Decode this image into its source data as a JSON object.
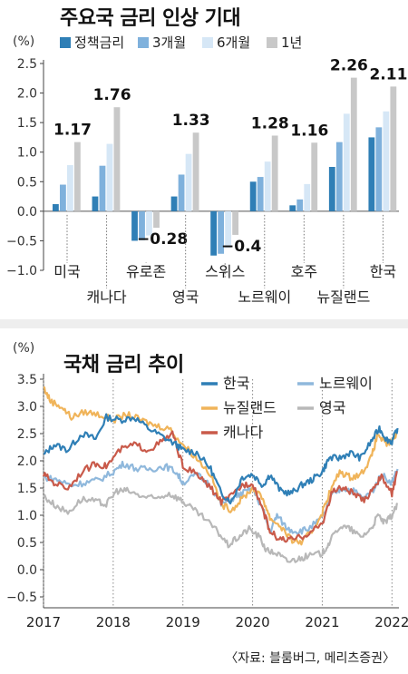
{
  "chart_data": [
    {
      "type": "bar",
      "title": "주요국 금리 인상 기대",
      "ylabel": "(%)",
      "ylim": [
        -1.0,
        2.5
      ],
      "yticks": [
        "2.5",
        "2.0",
        "1.5",
        "1.0",
        "0.5",
        "0.0",
        "-0.5",
        "-1.0"
      ],
      "legend_position": "top",
      "grid": false,
      "categories": [
        "미국",
        "캐나다",
        "유로존",
        "영국",
        "스위스",
        "노르웨이",
        "호주",
        "뉴질랜드",
        "한국"
      ],
      "series": [
        {
          "name": "정책금리",
          "color": "#2f7fb6",
          "values": [
            0.12,
            0.25,
            -0.5,
            0.25,
            -0.75,
            0.5,
            0.1,
            0.75,
            1.25
          ]
        },
        {
          "name": "3개월",
          "color": "#7fb1dc",
          "values": [
            0.45,
            0.77,
            -0.49,
            0.62,
            -0.72,
            0.58,
            0.2,
            1.17,
            1.42
          ]
        },
        {
          "name": "6개월",
          "color": "#d6e7f6",
          "values": [
            0.78,
            1.14,
            -0.41,
            0.97,
            -0.62,
            0.84,
            0.46,
            1.65,
            1.69
          ]
        },
        {
          "name": "1년",
          "color": "#c8c8c8",
          "values": [
            1.17,
            1.76,
            -0.28,
            1.33,
            -0.4,
            1.28,
            1.16,
            2.26,
            2.11
          ]
        }
      ],
      "value_labels": [
        "1.17",
        "1.76",
        "−0.28",
        "1.33",
        "−0.4",
        "1.28",
        "1.16",
        "2.26",
        "2.11"
      ]
    },
    {
      "type": "line",
      "title": "국채 금리 추이",
      "ylabel": "(%)",
      "ylim": [
        -0.5,
        3.5
      ],
      "yticks": [
        "3.5",
        "3.0",
        "2.5",
        "2.0",
        "1.5",
        "1.0",
        "0.5",
        "0.0",
        "-0.5"
      ],
      "xlim": [
        2017.0,
        2022.1
      ],
      "xticks": [
        "2017",
        "2018",
        "2019",
        "2020",
        "2021",
        "2022"
      ],
      "grid": false,
      "series": [
        {
          "name": "한국",
          "color": "#2f7fb6",
          "points": [
            [
              2017.0,
              2.1
            ],
            [
              2017.15,
              2.3
            ],
            [
              2017.35,
              2.2
            ],
            [
              2017.55,
              2.5
            ],
            [
              2017.75,
              2.4
            ],
            [
              2017.9,
              2.8
            ],
            [
              2018.1,
              2.75
            ],
            [
              2018.3,
              2.8
            ],
            [
              2018.5,
              2.6
            ],
            [
              2018.7,
              2.45
            ],
            [
              2018.9,
              2.3
            ],
            [
              2019.0,
              2.2
            ],
            [
              2019.2,
              2.15
            ],
            [
              2019.4,
              1.85
            ],
            [
              2019.55,
              1.4
            ],
            [
              2019.7,
              1.25
            ],
            [
              2019.85,
              1.7
            ],
            [
              2020.0,
              1.75
            ],
            [
              2020.15,
              1.55
            ],
            [
              2020.25,
              1.75
            ],
            [
              2020.4,
              1.45
            ],
            [
              2020.55,
              1.4
            ],
            [
              2020.7,
              1.55
            ],
            [
              2020.85,
              1.65
            ],
            [
              2021.0,
              1.8
            ],
            [
              2021.1,
              2.05
            ],
            [
              2021.25,
              2.05
            ],
            [
              2021.4,
              2.15
            ],
            [
              2021.55,
              2.05
            ],
            [
              2021.7,
              2.35
            ],
            [
              2021.82,
              2.6
            ],
            [
              2021.92,
              2.4
            ],
            [
              2022.0,
              2.35
            ],
            [
              2022.08,
              2.6
            ]
          ]
        },
        {
          "name": "노르웨이",
          "color": "#8fb8dc",
          "points": [
            [
              2017.0,
              1.7
            ],
            [
              2017.2,
              1.65
            ],
            [
              2017.4,
              1.55
            ],
            [
              2017.6,
              1.6
            ],
            [
              2017.8,
              1.65
            ],
            [
              2018.0,
              1.8
            ],
            [
              2018.15,
              1.95
            ],
            [
              2018.35,
              1.85
            ],
            [
              2018.55,
              1.85
            ],
            [
              2018.75,
              1.9
            ],
            [
              2018.9,
              1.8
            ],
            [
              2019.0,
              1.6
            ],
            [
              2019.2,
              1.75
            ],
            [
              2019.4,
              1.55
            ],
            [
              2019.55,
              1.2
            ],
            [
              2019.7,
              1.3
            ],
            [
              2019.85,
              1.4
            ],
            [
              2020.0,
              1.5
            ],
            [
              2020.15,
              1.1
            ],
            [
              2020.25,
              0.7
            ],
            [
              2020.35,
              1.0
            ],
            [
              2020.5,
              0.75
            ],
            [
              2020.65,
              0.7
            ],
            [
              2020.8,
              0.75
            ],
            [
              2021.0,
              0.95
            ],
            [
              2021.15,
              1.4
            ],
            [
              2021.3,
              1.5
            ],
            [
              2021.45,
              1.45
            ],
            [
              2021.6,
              1.3
            ],
            [
              2021.75,
              1.5
            ],
            [
              2021.85,
              1.75
            ],
            [
              2022.0,
              1.6
            ],
            [
              2022.08,
              1.85
            ]
          ]
        },
        {
          "name": "뉴질랜드",
          "color": "#f0b45a",
          "points": [
            [
              2017.0,
              3.35
            ],
            [
              2017.1,
              3.1
            ],
            [
              2017.25,
              3.0
            ],
            [
              2017.4,
              2.8
            ],
            [
              2017.6,
              2.9
            ],
            [
              2017.8,
              2.85
            ],
            [
              2018.0,
              2.75
            ],
            [
              2018.2,
              2.85
            ],
            [
              2018.4,
              2.75
            ],
            [
              2018.6,
              2.65
            ],
            [
              2018.8,
              2.6
            ],
            [
              2019.0,
              2.3
            ],
            [
              2019.2,
              2.05
            ],
            [
              2019.4,
              1.75
            ],
            [
              2019.55,
              1.2
            ],
            [
              2019.7,
              1.1
            ],
            [
              2019.85,
              1.3
            ],
            [
              2020.0,
              1.5
            ],
            [
              2020.15,
              1.3
            ],
            [
              2020.25,
              0.95
            ],
            [
              2020.4,
              0.8
            ],
            [
              2020.55,
              0.55
            ],
            [
              2020.7,
              0.5
            ],
            [
              2020.85,
              0.7
            ],
            [
              2021.0,
              1.05
            ],
            [
              2021.1,
              1.4
            ],
            [
              2021.25,
              1.8
            ],
            [
              2021.4,
              1.7
            ],
            [
              2021.55,
              1.75
            ],
            [
              2021.7,
              2.05
            ],
            [
              2021.8,
              2.5
            ],
            [
              2021.9,
              2.3
            ],
            [
              2022.0,
              2.35
            ],
            [
              2022.08,
              2.55
            ]
          ]
        },
        {
          "name": "영국",
          "color": "#b8b8b8",
          "points": [
            [
              2017.0,
              1.35
            ],
            [
              2017.15,
              1.2
            ],
            [
              2017.35,
              1.05
            ],
            [
              2017.55,
              1.3
            ],
            [
              2017.75,
              1.25
            ],
            [
              2017.9,
              1.2
            ],
            [
              2018.05,
              1.45
            ],
            [
              2018.2,
              1.45
            ],
            [
              2018.4,
              1.35
            ],
            [
              2018.6,
              1.3
            ],
            [
              2018.8,
              1.4
            ],
            [
              2018.95,
              1.3
            ],
            [
              2019.1,
              1.15
            ],
            [
              2019.3,
              0.95
            ],
            [
              2019.5,
              0.7
            ],
            [
              2019.65,
              0.45
            ],
            [
              2019.8,
              0.6
            ],
            [
              2019.95,
              0.75
            ],
            [
              2020.1,
              0.6
            ],
            [
              2020.2,
              0.35
            ],
            [
              2020.35,
              0.3
            ],
            [
              2020.5,
              0.15
            ],
            [
              2020.65,
              0.2
            ],
            [
              2020.8,
              0.25
            ],
            [
              2021.0,
              0.3
            ],
            [
              2021.1,
              0.5
            ],
            [
              2021.25,
              0.8
            ],
            [
              2021.4,
              0.75
            ],
            [
              2021.55,
              0.6
            ],
            [
              2021.7,
              0.75
            ],
            [
              2021.8,
              1.0
            ],
            [
              2021.9,
              0.85
            ],
            [
              2022.0,
              1.0
            ],
            [
              2022.08,
              1.2
            ]
          ]
        },
        {
          "name": "캐나다",
          "color": "#c95a4a",
          "points": [
            [
              2017.0,
              1.75
            ],
            [
              2017.15,
              1.6
            ],
            [
              2017.35,
              1.5
            ],
            [
              2017.55,
              1.8
            ],
            [
              2017.75,
              1.95
            ],
            [
              2017.9,
              1.9
            ],
            [
              2018.1,
              2.2
            ],
            [
              2018.3,
              2.3
            ],
            [
              2018.5,
              2.2
            ],
            [
              2018.7,
              2.35
            ],
            [
              2018.85,
              2.5
            ],
            [
              2019.0,
              1.9
            ],
            [
              2019.2,
              1.75
            ],
            [
              2019.4,
              1.5
            ],
            [
              2019.55,
              1.25
            ],
            [
              2019.7,
              1.35
            ],
            [
              2019.85,
              1.55
            ],
            [
              2020.0,
              1.6
            ],
            [
              2020.15,
              1.1
            ],
            [
              2020.25,
              0.7
            ],
            [
              2020.4,
              0.55
            ],
            [
              2020.55,
              0.55
            ],
            [
              2020.7,
              0.6
            ],
            [
              2020.85,
              0.7
            ],
            [
              2021.0,
              0.85
            ],
            [
              2021.15,
              1.45
            ],
            [
              2021.3,
              1.5
            ],
            [
              2021.45,
              1.4
            ],
            [
              2021.6,
              1.25
            ],
            [
              2021.75,
              1.55
            ],
            [
              2021.85,
              1.7
            ],
            [
              2022.0,
              1.4
            ],
            [
              2022.08,
              1.8
            ]
          ]
        }
      ]
    }
  ],
  "source": "〈자료: 블룸버그, 메리츠증권〉"
}
